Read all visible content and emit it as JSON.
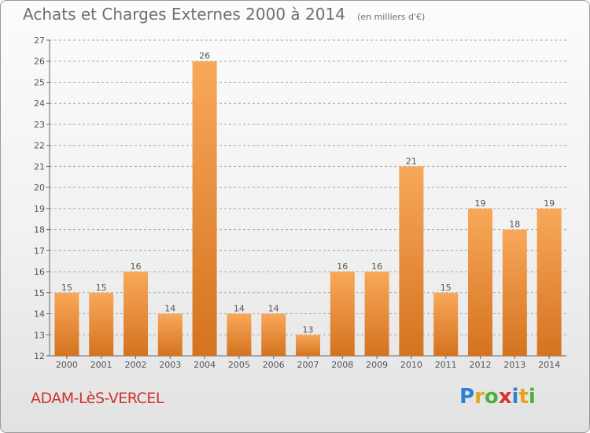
{
  "title": "Achats et Charges Externes 2000 à 2014",
  "subtitle": "(en milliers d'€)",
  "commune": "ADAM-LèS-VERCEL",
  "logo": {
    "letters": [
      "P",
      "r",
      "o",
      "x",
      "i",
      "t",
      "i"
    ],
    "colors": [
      "#2e7fd6",
      "#e8a21e",
      "#4fae3a",
      "#d9322b",
      "#2e7fd6",
      "#e8a21e",
      "#4fae3a"
    ]
  },
  "colors": {
    "bar_top": "#f8a85a",
    "bar_bottom": "#d4731f",
    "grid": "#a8a8a8",
    "axis_text": "#555555",
    "title": "#6f6f6f",
    "commune": "#cc3333"
  },
  "chart_data": {
    "type": "bar",
    "title": "Achats et Charges Externes 2000 à 2014",
    "subtitle": "(en milliers d'€)",
    "categories": [
      "2000",
      "2001",
      "2002",
      "2003",
      "2004",
      "2005",
      "2006",
      "2007",
      "2008",
      "2009",
      "2010",
      "2011",
      "2012",
      "2013",
      "2014"
    ],
    "values": [
      15,
      15,
      16,
      14,
      26,
      14,
      14,
      13,
      16,
      16,
      21,
      15,
      19,
      18,
      19
    ],
    "ylim": [
      12,
      27
    ],
    "yticks": [
      12,
      13,
      14,
      15,
      16,
      17,
      18,
      19,
      20,
      21,
      22,
      23,
      24,
      25,
      26,
      27
    ],
    "grid": true,
    "grid_style": "dashed horizontal",
    "data_labels": true
  }
}
